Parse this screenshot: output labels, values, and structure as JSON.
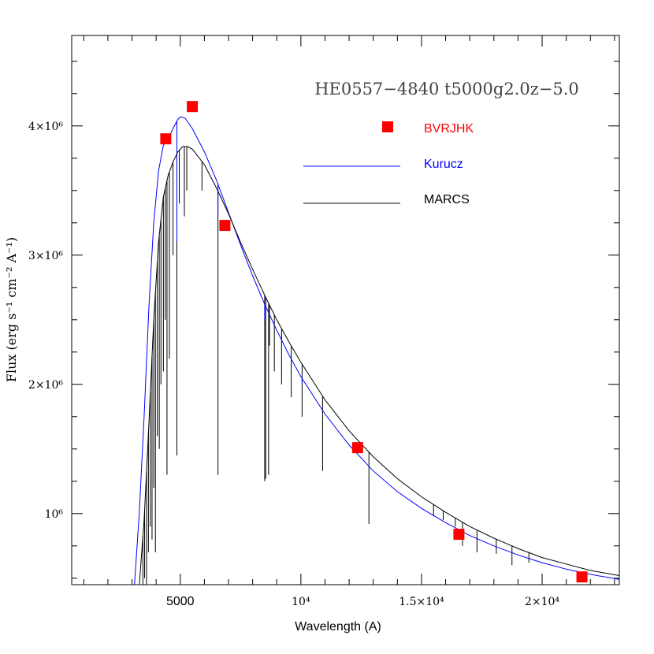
{
  "chart_data": {
    "type": "line",
    "title": "HE0557−4840 t5000g2.0z−5.0",
    "xlabel": "Wavelength (A)",
    "ylabel": "Flux (erg s⁻¹ cm⁻² A⁻¹)",
    "xlim": [
      500,
      23200
    ],
    "ylim": [
      450000,
      4700000
    ],
    "x_ticks": [
      {
        "value": 5000,
        "label": "5000"
      },
      {
        "value": 10000,
        "label": "10⁴"
      },
      {
        "value": 15000,
        "label": "1.5×10⁴"
      },
      {
        "value": 20000,
        "label": "2×10⁴"
      }
    ],
    "y_ticks": [
      {
        "value": 1000000,
        "label": "10⁶"
      },
      {
        "value": 2000000,
        "label": "2×10⁶"
      },
      {
        "value": 3000000,
        "label": "3×10⁶"
      },
      {
        "value": 4000000,
        "label": "4×10⁶"
      }
    ],
    "legend": {
      "placement": "top-right",
      "entries": [
        {
          "label": "BVRJHK",
          "color": "#ff0000",
          "kind": "square"
        },
        {
          "label": "Kurucz",
          "color": "#0000ff",
          "kind": "line"
        },
        {
          "label": "MARCS",
          "color": "#000000",
          "kind": "line"
        }
      ]
    },
    "series": [
      {
        "name": "BVRJHK",
        "kind": "points",
        "color": "#ff0000",
        "points": [
          [
            4400,
            3900000
          ],
          [
            5500,
            4150000
          ],
          [
            6850,
            3230000
          ],
          [
            12350,
            1510000
          ],
          [
            16550,
            840000
          ],
          [
            21650,
            510000
          ]
        ]
      },
      {
        "name": "Kurucz",
        "kind": "line",
        "color": "#0000ff",
        "points": [
          [
            3100,
            440000
          ],
          [
            3300,
            1000000
          ],
          [
            3500,
            1750000
          ],
          [
            3700,
            2600000
          ],
          [
            3900,
            3250000
          ],
          [
            4100,
            3650000
          ],
          [
            4300,
            3850000
          ],
          [
            4500,
            3900000
          ],
          [
            4700,
            3980000
          ],
          [
            4900,
            4050000
          ],
          [
            5000,
            4070000
          ],
          [
            5200,
            4060000
          ],
          [
            5500,
            3980000
          ],
          [
            6000,
            3800000
          ],
          [
            6500,
            3580000
          ],
          [
            7000,
            3330000
          ],
          [
            7500,
            3080000
          ],
          [
            8000,
            2840000
          ],
          [
            8500,
            2620000
          ],
          [
            9000,
            2420000
          ],
          [
            9500,
            2230000
          ],
          [
            10000,
            2060000
          ],
          [
            11000,
            1770000
          ],
          [
            12000,
            1530000
          ],
          [
            13000,
            1330000
          ],
          [
            14000,
            1170000
          ],
          [
            15000,
            1040000
          ],
          [
            16000,
            930000
          ],
          [
            17000,
            830000
          ],
          [
            18000,
            750000
          ],
          [
            19000,
            680000
          ],
          [
            20000,
            620000
          ],
          [
            21000,
            570000
          ],
          [
            22000,
            530000
          ],
          [
            23200,
            490000
          ]
        ]
      },
      {
        "name": "MARCS",
        "kind": "line",
        "color": "#000000",
        "points": [
          [
            3300,
            440000
          ],
          [
            3500,
            950000
          ],
          [
            3700,
            1700000
          ],
          [
            3900,
            2500000
          ],
          [
            4100,
            3100000
          ],
          [
            4300,
            3450000
          ],
          [
            4500,
            3620000
          ],
          [
            4700,
            3720000
          ],
          [
            4900,
            3800000
          ],
          [
            5100,
            3840000
          ],
          [
            5300,
            3840000
          ],
          [
            5500,
            3820000
          ],
          [
            6000,
            3700000
          ],
          [
            6500,
            3520000
          ],
          [
            7000,
            3320000
          ],
          [
            7500,
            3100000
          ],
          [
            8000,
            2890000
          ],
          [
            8500,
            2690000
          ],
          [
            9000,
            2500000
          ],
          [
            9500,
            2330000
          ],
          [
            10000,
            2170000
          ],
          [
            11000,
            1880000
          ],
          [
            12000,
            1640000
          ],
          [
            13000,
            1440000
          ],
          [
            14000,
            1270000
          ],
          [
            15000,
            1130000
          ],
          [
            16000,
            1010000
          ],
          [
            17000,
            900000
          ],
          [
            18000,
            810000
          ],
          [
            19000,
            730000
          ],
          [
            20000,
            660000
          ],
          [
            21000,
            610000
          ],
          [
            22000,
            560000
          ],
          [
            23200,
            520000
          ]
        ]
      }
    ],
    "absorption_lines_marcs": [
      [
        3450,
        450000
      ],
      [
        3520,
        500000
      ],
      [
        3600,
        450000
      ],
      [
        3680,
        700000
      ],
      [
        3760,
        900000
      ],
      [
        3830,
        800000
      ],
      [
        3900,
        1200000
      ],
      [
        3970,
        700000
      ],
      [
        4050,
        1600000
      ],
      [
        4130,
        1500000
      ],
      [
        4200,
        2000000
      ],
      [
        4300,
        2100000
      ],
      [
        4380,
        2500000
      ],
      [
        4450,
        1300000
      ],
      [
        4550,
        2200000
      ],
      [
        4700,
        3000000
      ],
      [
        4860,
        1450000
      ],
      [
        4960,
        3400000
      ],
      [
        5170,
        3300000
      ],
      [
        5270,
        3500000
      ],
      [
        5900,
        3500000
      ],
      [
        6563,
        1300000
      ],
      [
        8500,
        1250000
      ],
      [
        8542,
        1270000
      ],
      [
        8662,
        1300000
      ],
      [
        8700,
        2300000
      ],
      [
        8900,
        2100000
      ],
      [
        9200,
        2000000
      ],
      [
        9600,
        1900000
      ],
      [
        10050,
        1750000
      ],
      [
        10900,
        1330000
      ],
      [
        12820,
        920000
      ],
      [
        15500,
        980000
      ],
      [
        15900,
        950000
      ],
      [
        16400,
        900000
      ],
      [
        16700,
        750000
      ],
      [
        17300,
        700000
      ],
      [
        18100,
        690000
      ],
      [
        18750,
        600000
      ],
      [
        19450,
        620000
      ]
    ],
    "absorption_lines_kurucz": [
      [
        4860,
        3100000
      ],
      [
        6563,
        3300000
      ],
      [
        8500,
        2500000
      ],
      [
        10050,
        2000000
      ]
    ]
  }
}
